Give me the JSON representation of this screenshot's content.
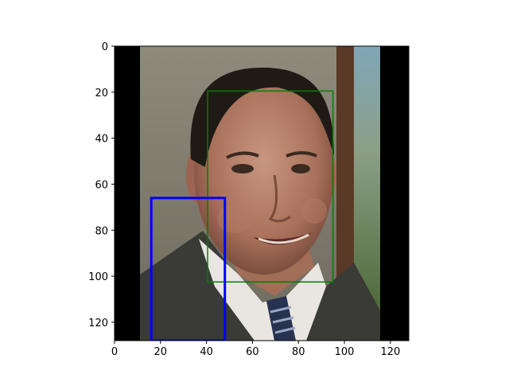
{
  "axes": {
    "x_ticks": [
      0,
      20,
      40,
      60,
      80,
      100,
      120
    ],
    "y_ticks": [
      0,
      20,
      40,
      60,
      80,
      100,
      120
    ],
    "xlim": [
      0,
      128
    ],
    "ylim": [
      128,
      0
    ],
    "y_inverted": true,
    "grid": false
  },
  "image": {
    "description_icon": "face-photo",
    "content_extent_x": [
      11,
      116
    ],
    "padding_color": "#000000"
  },
  "boxes": [
    {
      "name": "face-box",
      "color": "#008000",
      "x0": 40.5,
      "y0": 19.5,
      "x1": 95,
      "y1": 102.5
    },
    {
      "name": "selection-box",
      "color": "#0000ff",
      "x0": 16,
      "y0": 66,
      "x1": 48,
      "y1": 128
    }
  ]
}
